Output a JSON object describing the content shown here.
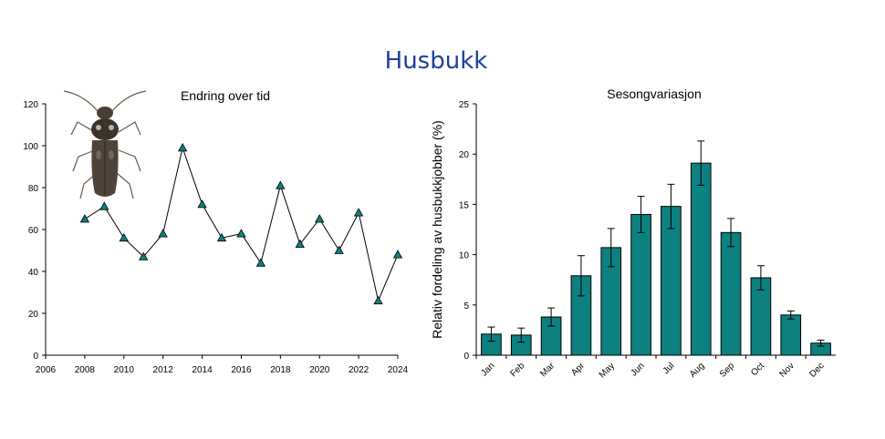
{
  "page_title": "Husbukk",
  "colors": {
    "title": "#1f3f9e",
    "series": "#0d8080",
    "line": "#000000"
  },
  "images": {
    "beetle": "house longhorn beetle (Hylotrupes bajulus) photo inset"
  },
  "chart_data": [
    {
      "type": "line",
      "title": "Endring over tid",
      "xlabel": "",
      "ylabel": "",
      "x": [
        2008,
        2009,
        2010,
        2011,
        2012,
        2013,
        2014,
        2015,
        2016,
        2017,
        2018,
        2019,
        2020,
        2021,
        2022,
        2023,
        2024
      ],
      "values": [
        65,
        71,
        56,
        47,
        58,
        99,
        72,
        56,
        58,
        44,
        81,
        53,
        65,
        50,
        68,
        26,
        48
      ],
      "xlim": [
        2006,
        2024
      ],
      "ylim": [
        0,
        120
      ],
      "xticks": [
        2006,
        2008,
        2010,
        2012,
        2014,
        2016,
        2018,
        2020,
        2022,
        2024
      ],
      "yticks": [
        0,
        20,
        40,
        60,
        80,
        100,
        120
      ],
      "marker": "triangle",
      "grid": false,
      "legend": "none"
    },
    {
      "type": "bar",
      "title": "Sesongvariasjon",
      "xlabel": "",
      "ylabel": "Relativ fordeling av husbukkjobber (%)",
      "categories": [
        "Jan",
        "Feb",
        "Mar",
        "Apr",
        "May",
        "Jun",
        "Jul",
        "Aug",
        "Sep",
        "Oct",
        "Nov",
        "Dec"
      ],
      "values": [
        2.1,
        2.0,
        3.8,
        7.9,
        10.7,
        14.0,
        14.8,
        19.1,
        12.2,
        7.7,
        4.0,
        1.2
      ],
      "errors": [
        0.7,
        0.7,
        0.9,
        2.0,
        1.9,
        1.8,
        2.2,
        2.2,
        1.4,
        1.2,
        0.4,
        0.3
      ],
      "ylim": [
        0,
        25
      ],
      "yticks": [
        0,
        5,
        10,
        15,
        20,
        25
      ],
      "grid": false,
      "legend": "none"
    }
  ]
}
